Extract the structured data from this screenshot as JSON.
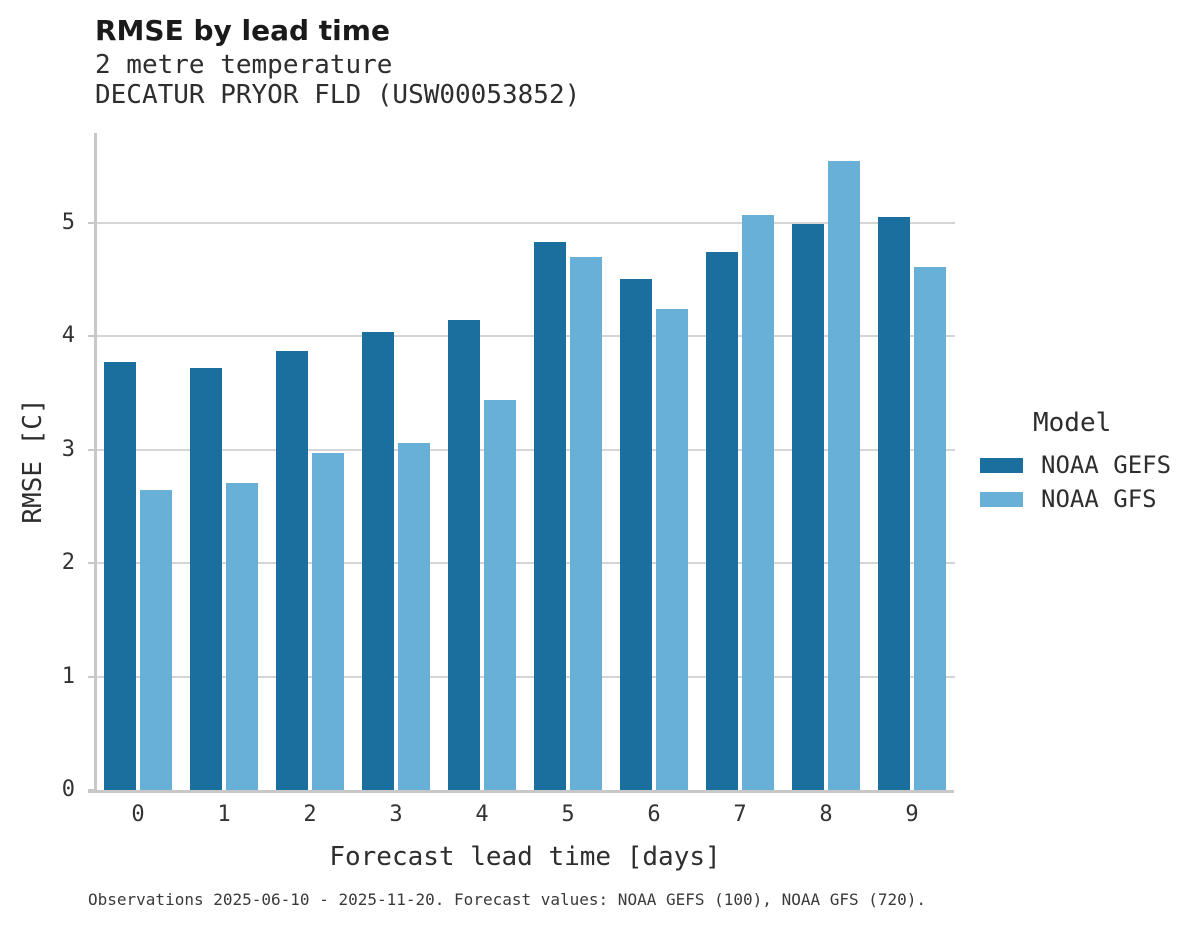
{
  "header": {
    "title": "RMSE by lead time",
    "subtitle1": "2 metre temperature",
    "subtitle2": "DECATUR PRYOR FLD (USW00053852)"
  },
  "chart_data": {
    "type": "bar",
    "title": "RMSE by lead time",
    "subtitle": [
      "2 metre temperature",
      "DECATUR PRYOR FLD (USW00053852)"
    ],
    "categories": [
      "0",
      "1",
      "2",
      "3",
      "4",
      "5",
      "6",
      "7",
      "8",
      "9"
    ],
    "series": [
      {
        "name": "NOAA GEFS",
        "color": "#1a6f9e",
        "values": [
          3.77,
          3.72,
          3.87,
          4.04,
          4.14,
          4.83,
          4.5,
          4.74,
          4.99,
          5.05
        ]
      },
      {
        "name": "NOAA GFS",
        "color": "#69b0d8",
        "values": [
          2.64,
          2.71,
          2.97,
          3.06,
          3.44,
          4.7,
          4.24,
          5.07,
          5.54,
          4.61
        ]
      }
    ],
    "xlabel": "Forecast lead time [days]",
    "ylabel": "RMSE [C]",
    "ylim": [
      0,
      5.79
    ],
    "yticks": [
      0,
      1,
      2,
      3,
      4,
      5
    ],
    "grid": true,
    "legend_position": "right"
  },
  "legend": {
    "title": "Model",
    "items": [
      {
        "label": "NOAA GEFS",
        "color": "#1a6f9e"
      },
      {
        "label": "NOAA GFS",
        "color": "#69b0d8"
      }
    ]
  },
  "colors": {
    "bar_dark": "#1a6f9e",
    "bar_light": "#69b0d8",
    "gridline": "#d5d5d5",
    "axis": "#c8c8c8"
  },
  "caption": "Observations 2025-06-10 - 2025-11-20. Forecast values: NOAA GEFS (100), NOAA GFS (720)."
}
